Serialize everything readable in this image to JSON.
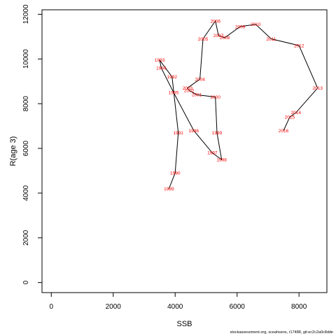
{
  "chart_data": {
    "type": "line",
    "xlabel": "SSB",
    "ylabel": "R(age 3)",
    "xlim": [
      -300,
      8900
    ],
    "ylim": [
      -450,
      12200
    ],
    "xticks": [
      0,
      2000,
      4000,
      6000,
      8000
    ],
    "yticks": [
      0,
      2000,
      4000,
      6000,
      8000,
      10000,
      12000
    ],
    "line_color": "#000000",
    "label_color": "#ff0000",
    "points": [
      {
        "year": "1989",
        "x": 3800,
        "y": 4200
      },
      {
        "year": "1990",
        "x": 4000,
        "y": 4900
      },
      {
        "year": "1991",
        "x": 4100,
        "y": 6700
      },
      {
        "year": "1992",
        "x": 3900,
        "y": 9200
      },
      {
        "year": "1993",
        "x": 3500,
        "y": 9950
      },
      {
        "year": "1994",
        "x": 3550,
        "y": 9600
      },
      {
        "year": "1995",
        "x": 3950,
        "y": 8500
      },
      {
        "year": "1996",
        "x": 4600,
        "y": 6800
      },
      {
        "year": "1997",
        "x": 5200,
        "y": 5800
      },
      {
        "year": "1998",
        "x": 5500,
        "y": 5500
      },
      {
        "year": "1999",
        "x": 5350,
        "y": 6700
      },
      {
        "year": "2000",
        "x": 5300,
        "y": 8300
      },
      {
        "year": "2001",
        "x": 4700,
        "y": 8400
      },
      {
        "year": "2002",
        "x": 4450,
        "y": 8600
      },
      {
        "year": "2003",
        "x": 4400,
        "y": 8700
      },
      {
        "year": "2004",
        "x": 4800,
        "y": 9100
      },
      {
        "year": "2005",
        "x": 4900,
        "y": 10900
      },
      {
        "year": "2006",
        "x": 5300,
        "y": 11700
      },
      {
        "year": "2007",
        "x": 5400,
        "y": 11050
      },
      {
        "year": "2008",
        "x": 5600,
        "y": 10950
      },
      {
        "year": "2009",
        "x": 6100,
        "y": 11450
      },
      {
        "year": "2010",
        "x": 6600,
        "y": 11550
      },
      {
        "year": "2011",
        "x": 7100,
        "y": 10900
      },
      {
        "year": "2012",
        "x": 8000,
        "y": 10600
      },
      {
        "year": "2013",
        "x": 8600,
        "y": 8700
      },
      {
        "year": "2014",
        "x": 7900,
        "y": 7600
      },
      {
        "year": "2015",
        "x": 7700,
        "y": 7400
      },
      {
        "year": "2016",
        "x": 7500,
        "y": 6800
      }
    ]
  },
  "footer": {
    "text": "stockassessment.org, sceahsens, r17488, git:ec2c2a0c8dde"
  }
}
